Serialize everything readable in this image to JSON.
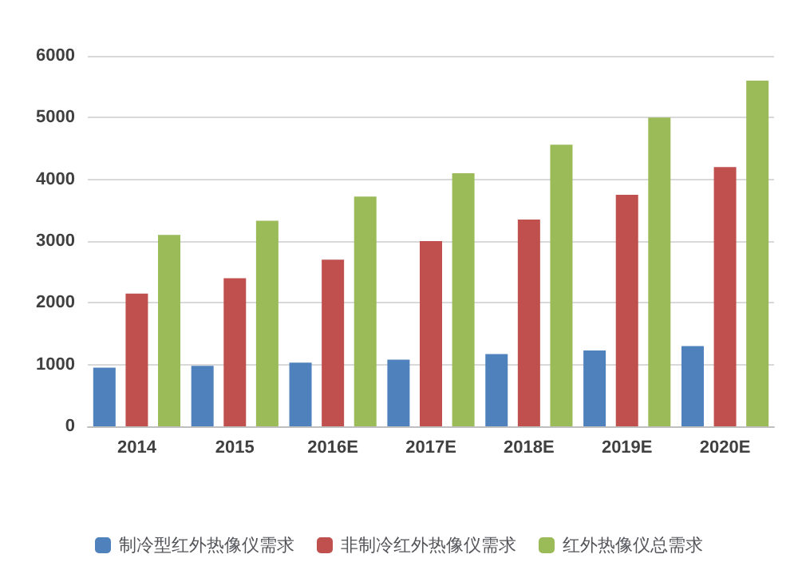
{
  "chart_data": {
    "type": "bar",
    "categories": [
      "2014",
      "2015",
      "2016E",
      "2017E",
      "2018E",
      "2019E",
      "2020E"
    ],
    "series": [
      {
        "name": "制冷型红外热像仪需求",
        "color": "#4f81bd",
        "values": [
          950,
          980,
          1030,
          1080,
          1170,
          1230,
          1300
        ]
      },
      {
        "name": "非制冷红外热像仪需求",
        "color": "#c0504d",
        "values": [
          2150,
          2400,
          2700,
          3000,
          3350,
          3750,
          4200
        ]
      },
      {
        "name": "红外热像仪总需求",
        "color": "#9bbb59",
        "values": [
          3100,
          3330,
          3720,
          4100,
          4560,
          5000,
          5600
        ]
      }
    ],
    "ylim": [
      0,
      6000
    ],
    "yticks": [
      0,
      1000,
      2000,
      3000,
      4000,
      5000,
      6000
    ],
    "grid": "y",
    "legend": "bottom"
  }
}
